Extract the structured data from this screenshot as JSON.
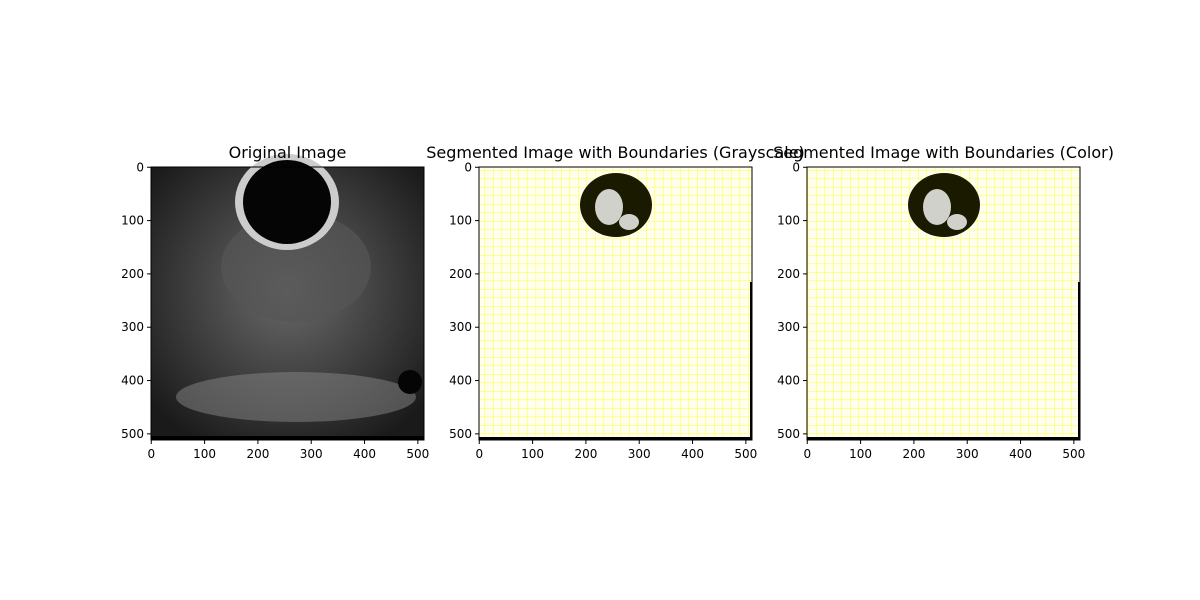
{
  "chart_data": [
    {
      "type": "image",
      "title": "Original Image",
      "xlim": [
        -0.5,
        511.5
      ],
      "ylim": [
        511.5,
        -0.5
      ],
      "xticks": [
        0,
        100,
        200,
        300,
        400,
        500
      ],
      "yticks": [
        0,
        100,
        200,
        300,
        400,
        500
      ]
    },
    {
      "type": "image",
      "title": "Segmented Image with Boundaries (Grayscale)",
      "xlim": [
        -0.5,
        511.5
      ],
      "ylim": [
        511.5,
        -0.5
      ],
      "xticks": [
        0,
        100,
        200,
        300,
        400,
        500
      ],
      "yticks": [
        0,
        100,
        200,
        300,
        400,
        500
      ]
    },
    {
      "type": "image",
      "title": "Segmented Image with Boundaries (Color)",
      "xlim": [
        -0.5,
        511.5
      ],
      "ylim": [
        511.5,
        -0.5
      ],
      "xticks": [
        0,
        100,
        200,
        300,
        400,
        500
      ],
      "yticks": [
        0,
        100,
        200,
        300,
        400,
        500
      ]
    }
  ]
}
